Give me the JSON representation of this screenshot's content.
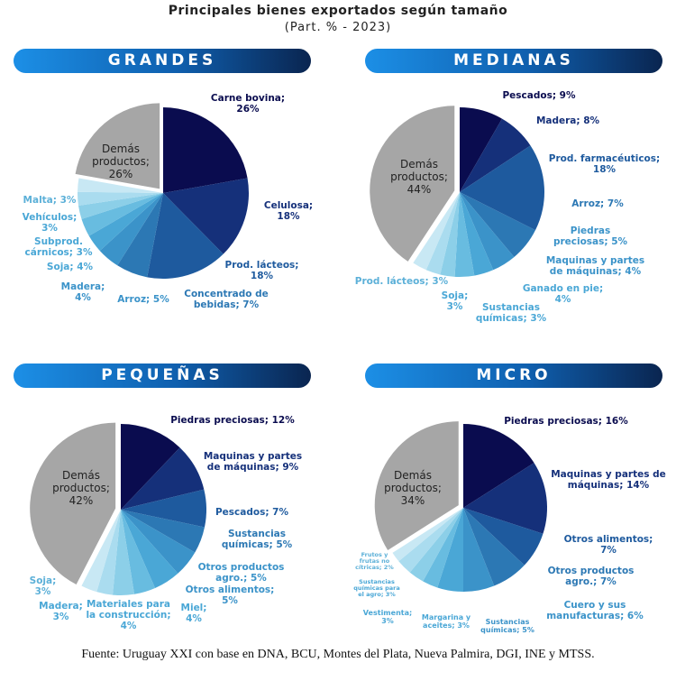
{
  "title": "Principales bienes exportados según tamaño",
  "subtitle": "(Part. % - 2023)",
  "footer": "Fuente: Uruguay XXI con base en DNA, BCU, Montes del Plata, Nueva Palmira, DGI, INE y MTSS.",
  "colors": {
    "others": "#a6a6a6",
    "banner_start": "#1c8fe6",
    "banner_end": "#0a2550"
  },
  "chart_data": [
    {
      "type": "pie",
      "title": "GRANDES",
      "categories": [
        "Carne bovina",
        "Celulosa",
        "Prod. lácteos",
        "Concentrado de bebidas",
        "Arroz",
        "Madera",
        "Soja",
        "Subprod. cárnicos",
        "Vehículos",
        "Malta",
        "Demás productos"
      ],
      "labels": [
        "Carne bovina; 26%",
        "Celulosa; 18%",
        "Prod. lácteos; 18%",
        "Concentrado de bebidas; 7%",
        "Arroz; 5%",
        "Madera; 4%",
        "Soja; 4%",
        "Subprod. cárnicos; 3%",
        "Vehículos; 3%",
        "Malta; 3%",
        "Demás productos; 26%"
      ],
      "values": [
        26,
        18,
        18,
        7,
        5,
        4,
        4,
        3,
        3,
        3,
        26
      ]
    },
    {
      "type": "pie",
      "title": "MEDIANAS",
      "categories": [
        "Pescados",
        "Madera",
        "Prod. farmacéuticos",
        "Arroz",
        "Piedras preciosas",
        "Maquinas y partes de máquinas",
        "Ganado en pie",
        "Sustancias químicas",
        "Soja",
        "Prod. lácteos",
        "Demás productos"
      ],
      "labels": [
        "Pescados; 9%",
        "Madera; 8%",
        "Prod. farmacéuticos; 18%",
        "Arroz; 7%",
        "Piedras preciosas; 5%",
        "Maquinas y partes de máquinas; 4%",
        "Ganado en pie; 4%",
        "Sustancias químicas; 3%",
        "Soja; 3%",
        "Prod. lácteos; 3%",
        "Demás productos; 44%"
      ],
      "values": [
        9,
        8,
        18,
        7,
        5,
        4,
        4,
        3,
        3,
        3,
        44
      ]
    },
    {
      "type": "pie",
      "title": "PEQUEÑAS",
      "categories": [
        "Piedras preciosas",
        "Maquinas y partes de máquinas",
        "Pescados",
        "Sustancias químicas",
        "Otros productos agro.",
        "Otros alimentos",
        "Miel",
        "Materiales para la construcción",
        "Madera",
        "Soja",
        "Demás productos"
      ],
      "labels": [
        "Piedras preciosas; 12%",
        "Maquinas y partes de máquinas; 9%",
        "Pescados; 7%",
        "Sustancias químicas; 5%",
        "Otros productos agro.; 5%",
        "Otros alimentos; 5%",
        "Miel; 4%",
        "Materiales para la construcción; 4%",
        "Madera; 3%",
        "Soja; 3%",
        "Demás productos; 42%"
      ],
      "values": [
        12,
        9,
        7,
        5,
        5,
        5,
        4,
        4,
        3,
        3,
        42
      ]
    },
    {
      "type": "pie",
      "title": "MICRO",
      "categories": [
        "Piedras preciosas",
        "Maquinas y partes de máquinas",
        "Otros alimentos",
        "Otros productos agro.",
        "Cuero y sus manufacturas",
        "Sustancias químicas",
        "Margarina y aceites",
        "Vestimenta",
        "Sustancias químicas para el agro",
        "Frutos y frutas no cítricas",
        "Demás productos"
      ],
      "labels": [
        "Piedras preciosas; 16%",
        "Maquinas y partes de máquinas; 14%",
        "Otros alimentos; 7%",
        "Otros productos agro.; 7%",
        "Cuero y sus manufacturas; 6%",
        "Sustancias químicas; 5%",
        "Margarina y aceites; 3%",
        "Vestimenta; 3%",
        "Sustancias químicas para el agro; 3%",
        "Frutos y frutas no cítricas; 2%",
        "Demás productos; 34%"
      ],
      "values": [
        16,
        14,
        7,
        7,
        6,
        5,
        3,
        3,
        3,
        2,
        34
      ]
    }
  ]
}
